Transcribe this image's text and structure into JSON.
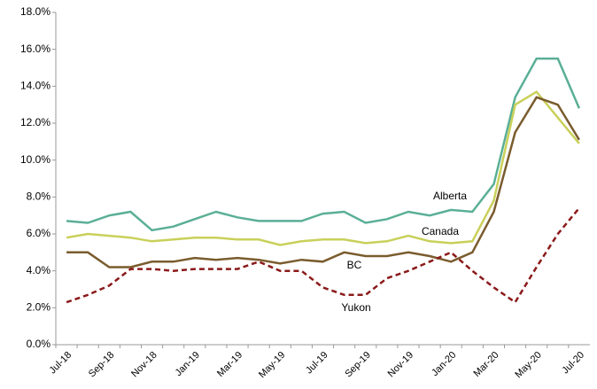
{
  "chart_data": {
    "type": "line",
    "categories": [
      "Jul-18",
      null,
      "Sep-18",
      null,
      "Nov-18",
      null,
      "Jan-19",
      null,
      "Mar-19",
      null,
      "May-19",
      null,
      "Jul-19",
      null,
      "Sep-19",
      null,
      "Nov-19",
      null,
      "Jan-20",
      null,
      "Mar-20",
      null,
      "May-20",
      null,
      "Jul-20"
    ],
    "series": [
      {
        "name": "Alberta",
        "color": "#5aaf96",
        "line_style": "solid",
        "values": [
          6.7,
          6.6,
          7.0,
          7.2,
          6.2,
          6.4,
          6.8,
          7.2,
          6.9,
          6.7,
          6.7,
          6.7,
          7.1,
          7.2,
          6.6,
          6.8,
          7.2,
          7.0,
          7.3,
          7.2,
          8.7,
          13.4,
          15.5,
          15.5,
          12.8
        ]
      },
      {
        "name": "Canada",
        "color": "#c9d05a",
        "line_style": "solid",
        "values": [
          5.8,
          6.0,
          5.9,
          5.8,
          5.6,
          5.7,
          5.8,
          5.8,
          5.7,
          5.7,
          5.4,
          5.6,
          5.7,
          5.7,
          5.5,
          5.6,
          5.9,
          5.6,
          5.5,
          5.6,
          7.8,
          13.0,
          13.7,
          12.3,
          10.9
        ]
      },
      {
        "name": "BC",
        "color": "#7a5c2e",
        "line_style": "solid",
        "values": [
          5.0,
          5.0,
          4.2,
          4.2,
          4.5,
          4.5,
          4.7,
          4.6,
          4.7,
          4.6,
          4.4,
          4.6,
          4.5,
          5.0,
          4.8,
          4.8,
          5.0,
          4.8,
          4.5,
          5.0,
          7.2,
          11.5,
          13.4,
          13.0,
          11.1
        ]
      },
      {
        "name": "Yukon",
        "color": "#8b1a1a",
        "line_style": "dashed",
        "values": [
          2.3,
          2.7,
          3.2,
          4.1,
          4.1,
          4.0,
          4.1,
          4.1,
          4.1,
          4.5,
          4.0,
          4.0,
          3.1,
          2.7,
          2.7,
          3.6,
          4.0,
          4.5,
          5.0,
          4.0,
          3.1,
          2.3,
          4.2,
          6.0,
          7.4
        ]
      }
    ],
    "ylim": [
      0,
      18
    ],
    "yticks": [
      {
        "value": 0,
        "label": "0.0%"
      },
      {
        "value": 2,
        "label": "2.0%"
      },
      {
        "value": 4,
        "label": "4.0%"
      },
      {
        "value": 6,
        "label": "6.0%"
      },
      {
        "value": 8,
        "label": "8.0%"
      },
      {
        "value": 10,
        "label": "10.0%"
      },
      {
        "value": 12,
        "label": "12.0%"
      },
      {
        "value": 14,
        "label": "14.0%"
      },
      {
        "value": 16,
        "label": "16.0%"
      },
      {
        "value": 18,
        "label": "18.0%"
      }
    ],
    "grid": false
  }
}
